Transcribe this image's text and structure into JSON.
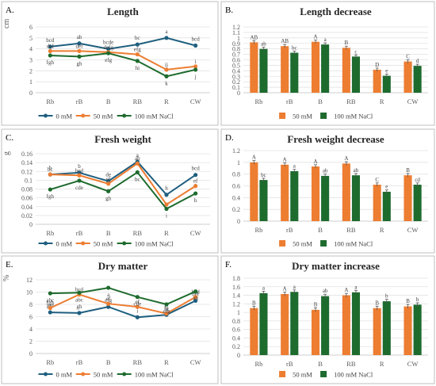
{
  "chart_data": [
    {
      "panel": "A.",
      "title": "Length",
      "type": "line",
      "unit": "cm",
      "categories": [
        "Rb",
        "rB",
        "B",
        "RB",
        "R",
        "CW"
      ],
      "ylim": [
        0,
        6
      ],
      "yticks": [
        0,
        1,
        2,
        3,
        4,
        5,
        6
      ],
      "grid": true,
      "legend": "bottom",
      "series": [
        {
          "name": "0 mM",
          "color": "#1f5f7f",
          "values": [
            4.2,
            4.5,
            4.0,
            4.4,
            5.0,
            4.3
          ],
          "labels": [
            "bcd",
            "ab",
            "bcde",
            "bc",
            "a",
            "bcd"
          ]
        },
        {
          "name": "50 mM",
          "color": "#ed7d31",
          "values": [
            3.8,
            3.8,
            3.7,
            3.5,
            2.1,
            2.4
          ],
          "labels": [
            "def",
            "def",
            "defg",
            "efg",
            "ij",
            "i"
          ]
        },
        {
          "name": "100 mM NaCl",
          "color": "#1e6b2e",
          "values": [
            3.4,
            3.3,
            3.6,
            2.9,
            1.5,
            2.1
          ],
          "labels": [
            "fgh",
            "gh",
            "efg",
            "hi",
            "k",
            "j"
          ]
        }
      ]
    },
    {
      "panel": "B.",
      "title": "Length decrease",
      "type": "bar",
      "categories": [
        "Rb",
        "rB",
        "B",
        "RB",
        "R",
        "CW"
      ],
      "ylim": [
        0,
        1.2
      ],
      "yticks": [
        0,
        0.1,
        0.2,
        0.3,
        0.4,
        0.5,
        0.6,
        0.7,
        0.8,
        0.9,
        1,
        1.1,
        1.2
      ],
      "grid": true,
      "legend": "bottom",
      "series": [
        {
          "name": "50 mM",
          "color": "#ed7d31",
          "values": [
            0.92,
            0.85,
            0.93,
            0.82,
            0.42,
            0.57
          ],
          "labels": [
            "AB",
            "AB",
            "A",
            "B",
            "D",
            "C"
          ]
        },
        {
          "name": "100 mM NaCl",
          "color": "#1e6b2e",
          "values": [
            0.8,
            0.73,
            0.88,
            0.66,
            0.31,
            0.49
          ],
          "labels": [
            "ab",
            "bc",
            "a",
            "c",
            "e",
            "d"
          ]
        }
      ]
    },
    {
      "panel": "C.",
      "title": "Fresh weight",
      "type": "line",
      "unit": "g",
      "categories": [
        "Rb",
        "rB",
        "B",
        "RB",
        "R",
        "CW"
      ],
      "ylim": [
        0,
        0.16
      ],
      "yticks": [
        0,
        0.02,
        0.04,
        0.06,
        0.08,
        0.1,
        0.12,
        0.14,
        0.16
      ],
      "grid": true,
      "legend": "bottom",
      "series": [
        {
          "name": "0 mM",
          "color": "#1f5f7f",
          "values": [
            0.113,
            0.117,
            0.098,
            0.142,
            0.067,
            0.112
          ],
          "labels": [
            "b",
            "b",
            "de",
            "a",
            "h",
            "bcd"
          ]
        },
        {
          "name": "50 mM",
          "color": "#ed7d31",
          "values": [
            0.113,
            0.111,
            0.092,
            0.138,
            0.045,
            0.087
          ],
          "labels": [
            "bc",
            "bcd",
            "ef",
            "ab",
            "",
            "ef"
          ]
        },
        {
          "name": "100 mM NaCl",
          "color": "#1e6b2e",
          "values": [
            0.079,
            0.099,
            0.075,
            0.118,
            0.035,
            0.07
          ],
          "labels": [
            "fgh",
            "cde",
            "gh",
            "bc",
            "i",
            "h"
          ]
        }
      ]
    },
    {
      "panel": "D.",
      "title": "Fresh weight decrease",
      "type": "bar",
      "categories": [
        "Rb",
        "rB",
        "B",
        "RB",
        "R",
        "CW"
      ],
      "ylim": [
        0,
        1.2
      ],
      "yticks": [
        0,
        0.2,
        0.4,
        0.6,
        0.8,
        1,
        1.2
      ],
      "grid": true,
      "legend": "bottom",
      "series": [
        {
          "name": "50 mM",
          "color": "#ed7d31",
          "values": [
            1.0,
            0.96,
            0.93,
            0.98,
            0.62,
            0.78
          ],
          "labels": [
            "A",
            "A",
            "A",
            "A",
            "C",
            "B"
          ]
        },
        {
          "name": "100 mM NaCl",
          "color": "#1e6b2e",
          "values": [
            0.7,
            0.85,
            0.77,
            0.78,
            0.5,
            0.62
          ],
          "labels": [
            "bc",
            "a",
            "ab",
            "ab",
            "e",
            "cd"
          ]
        }
      ]
    },
    {
      "panel": "E.",
      "title": "Dry matter",
      "type": "line",
      "unit": "%",
      "categories": [
        "Rb",
        "rB",
        "B",
        "RB",
        "R",
        "CW"
      ],
      "ylim": [
        0,
        12
      ],
      "yticks": [
        0,
        2,
        4,
        6,
        8,
        10,
        12
      ],
      "grid": true,
      "legend": "bottom",
      "series": [
        {
          "name": "0 mM",
          "color": "#1f5f7f",
          "values": [
            6.7,
            6.6,
            7.6,
            5.9,
            6.3,
            8.6
          ],
          "labels": [
            "ghi",
            "gh",
            "efg",
            "i",
            "hi",
            "def"
          ]
        },
        {
          "name": "50 mM",
          "color": "#ed7d31",
          "values": [
            7.4,
            9.6,
            8.1,
            7.6,
            6.5,
            9.2
          ],
          "labels": [
            "fgh",
            "bcd",
            "ef",
            "ef",
            "fg",
            "bcd"
          ]
        },
        {
          "name": "100 mM NaCl",
          "color": "#1e6b2e",
          "values": [
            9.8,
            9.9,
            10.7,
            9.2,
            8.0,
            10.1
          ],
          "labels": [
            "abc",
            "abc",
            "a",
            "cde",
            "efg",
            "ab"
          ]
        }
      ]
    },
    {
      "panel": "F.",
      "title": "Dry matter increase",
      "type": "bar",
      "categories": [
        "Rb",
        "rB",
        "B",
        "RB",
        "R",
        "CW"
      ],
      "ylim": [
        0,
        1.8
      ],
      "yticks": [
        0,
        0.2,
        0.4,
        0.6,
        0.8,
        1,
        1.2,
        1.4,
        1.6,
        1.8
      ],
      "grid": true,
      "legend": "bottom",
      "series": [
        {
          "name": "50 mM",
          "color": "#ed7d31",
          "values": [
            1.1,
            1.43,
            1.06,
            1.4,
            1.1,
            1.14
          ],
          "labels": [
            "B",
            "A",
            "B",
            "A",
            "B",
            "B"
          ]
        },
        {
          "name": "100 mM NaCl",
          "color": "#1e6b2e",
          "values": [
            1.45,
            1.48,
            1.38,
            1.47,
            1.26,
            1.18
          ],
          "labels": [
            "a",
            "a",
            "ab",
            "a",
            "b",
            "b"
          ]
        }
      ]
    }
  ]
}
